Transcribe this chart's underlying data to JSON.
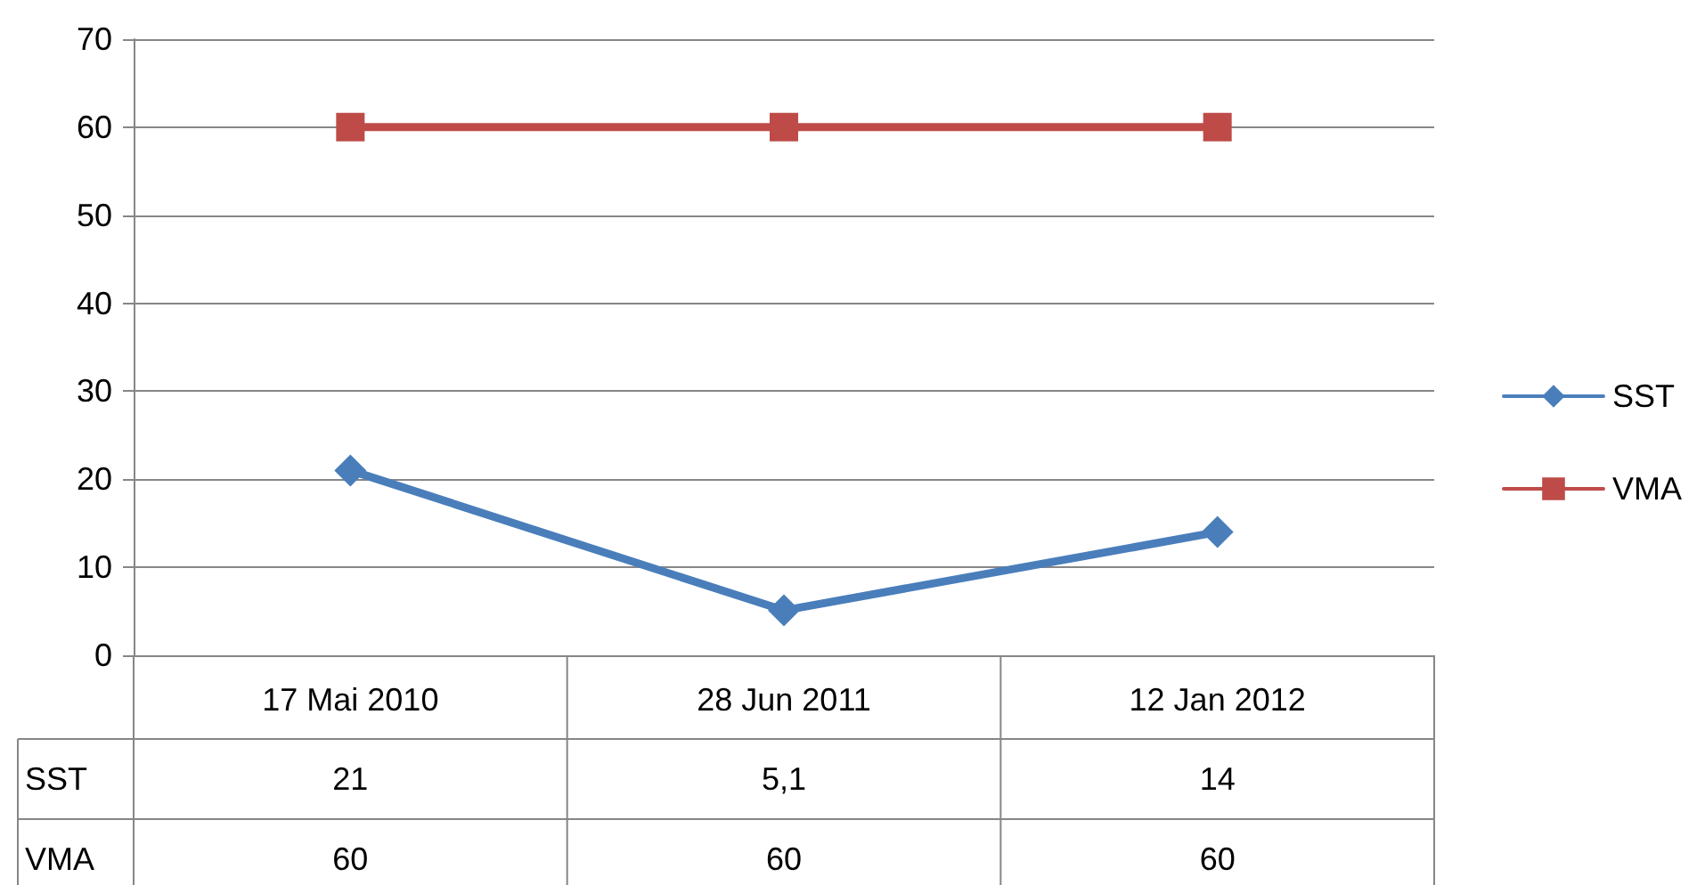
{
  "chart_data": {
    "type": "line",
    "categories": [
      "17 Mai 2010",
      "28 Jun 2011",
      "12 Jan 2012"
    ],
    "series": [
      {
        "name": "SST",
        "color": "#4a7ebb",
        "values": [
          21,
          5.1,
          14
        ],
        "value_labels": [
          "21",
          "5,1",
          "14"
        ],
        "marker": "diamond"
      },
      {
        "name": "VMA",
        "color": "#be4b48",
        "values": [
          60,
          60,
          60
        ],
        "value_labels": [
          "60",
          "60",
          "60"
        ],
        "marker": "square"
      }
    ],
    "ylim": [
      0,
      70
    ],
    "yticks": [
      0,
      10,
      20,
      30,
      40,
      50,
      60,
      70
    ],
    "grid": "y",
    "legend": "right",
    "line_style": "solid"
  }
}
